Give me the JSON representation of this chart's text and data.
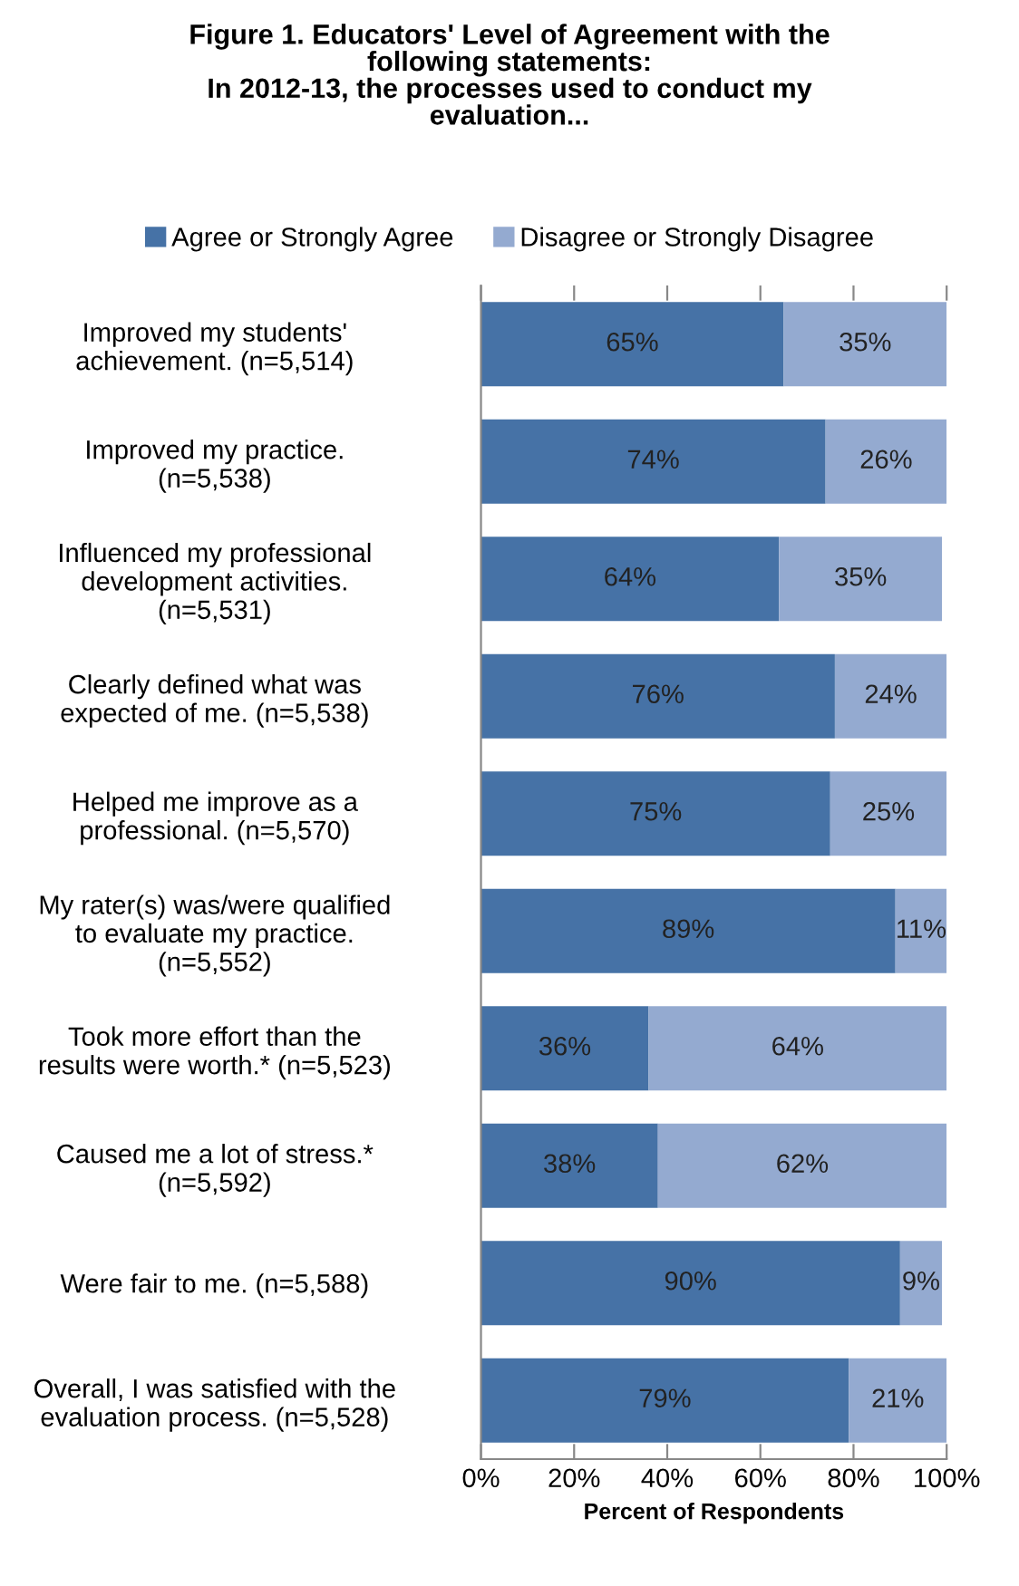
{
  "chart_data": {
    "type": "bar",
    "orientation": "horizontal",
    "stacked": true,
    "title": "Figure 1. Educators' Level of Agreement with the\nfollowing statements:\nIn 2012-13, the processes used to conduct my\nevaluation...",
    "xlabel": "Percent of Respondents",
    "categories": [
      "Improved my students'\nachievement. (n=5,514)",
      "Improved my practice.\n(n=5,538)",
      "Influenced my professional\ndevelopment activities.\n(n=5,531)",
      "Clearly defined what was\nexpected of me. (n=5,538)",
      "Helped me improve as a\nprofessional. (n=5,570)",
      "My rater(s) was/were qualified\nto evaluate my practice.\n(n=5,552)",
      "Took more effort than the\nresults were worth.* (n=5,523)",
      "Caused me a lot of stress.*\n(n=5,592)",
      "Were fair to me. (n=5,588)",
      "Overall, I was satisfied with the\nevaluation process. (n=5,528)"
    ],
    "series": [
      {
        "name": "Agree or Strongly Agree",
        "color": "#4672a6",
        "values": [
          65,
          74,
          64,
          76,
          75,
          89,
          36,
          38,
          90,
          79
        ],
        "value_labels": [
          "65%",
          "74%",
          "64%",
          "76%",
          "75%",
          "89%",
          "36%",
          "38%",
          "90%",
          "79%"
        ]
      },
      {
        "name": "Disagree or Strongly Disagree",
        "color": "#94aad0",
        "values": [
          35,
          26,
          35,
          24,
          25,
          11,
          64,
          62,
          9,
          21
        ],
        "value_labels": [
          "35%",
          "26%",
          "35%",
          "24%",
          "25%",
          "11%",
          "64%",
          "62%",
          "9%",
          "21%"
        ]
      }
    ],
    "xlim": [
      0,
      100
    ],
    "xticks": [
      {
        "value": 0,
        "label": "0%"
      },
      {
        "value": 20,
        "label": "20%"
      },
      {
        "value": 40,
        "label": "40%"
      },
      {
        "value": 60,
        "label": "60%"
      },
      {
        "value": 80,
        "label": "80%"
      },
      {
        "value": 100,
        "label": "100%"
      }
    ],
    "grid": false,
    "legend": "top"
  }
}
